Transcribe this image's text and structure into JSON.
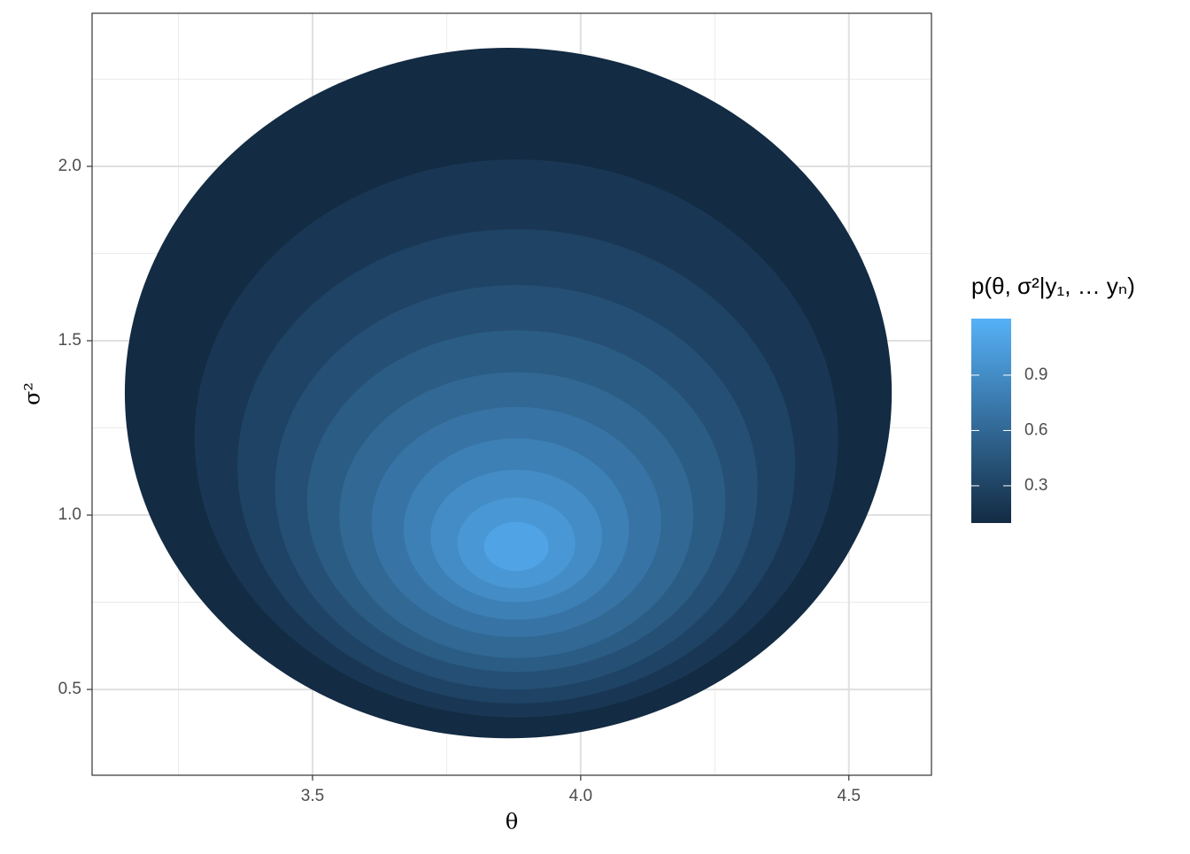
{
  "chart_data": {
    "type": "filled-contour",
    "x_label": "θ",
    "y_label": "σ²",
    "legend_title": "p(θ, σ²|y₁,  … yₙ)",
    "xlim": [
      3.089,
      4.654
    ],
    "ylim": [
      0.254,
      2.439
    ],
    "xticks": [
      3.5,
      {
        "value": 4.0,
        "label": "4.0"
      },
      4.5
    ],
    "yticks": [
      {
        "value": 0.5,
        "label": "0.5"
      },
      {
        "value": 1.0,
        "label": "1.0"
      },
      {
        "value": 1.5,
        "label": "1.5"
      },
      {
        "value": 2.0,
        "label": "2.0"
      }
    ],
    "xminor": [
      3.25,
      3.75,
      4.25
    ],
    "yminor": [
      0.75,
      1.25,
      1.75,
      2.25
    ],
    "grid": true,
    "fill_scale": {
      "low": "#132B43",
      "high": "#56B1F7",
      "lim": [
        0.098,
        1.207
      ],
      "ticks": [
        0.3,
        0.6,
        0.9
      ]
    },
    "levels": [
      {
        "level": 0.1,
        "cx": 3.865,
        "cy": 1.35,
        "rx": 0.715,
        "ry": 0.99
      },
      {
        "level": 0.2,
        "cx": 3.88,
        "cy": 1.22,
        "rx": 0.6,
        "ry": 0.8
      },
      {
        "level": 0.3,
        "cx": 3.88,
        "cy": 1.14,
        "rx": 0.52,
        "ry": 0.68
      },
      {
        "level": 0.4,
        "cx": 3.88,
        "cy": 1.08,
        "rx": 0.45,
        "ry": 0.58
      },
      {
        "level": 0.5,
        "cx": 3.88,
        "cy": 1.04,
        "rx": 0.39,
        "ry": 0.49
      },
      {
        "level": 0.6,
        "cx": 3.88,
        "cy": 1.0,
        "rx": 0.33,
        "ry": 0.41
      },
      {
        "level": 0.7,
        "cx": 3.88,
        "cy": 0.98,
        "rx": 0.27,
        "ry": 0.33
      },
      {
        "level": 0.8,
        "cx": 3.88,
        "cy": 0.96,
        "rx": 0.21,
        "ry": 0.26
      },
      {
        "level": 0.9,
        "cx": 3.88,
        "cy": 0.94,
        "rx": 0.16,
        "ry": 0.19
      },
      {
        "level": 1.0,
        "cx": 3.88,
        "cy": 0.92,
        "rx": 0.11,
        "ry": 0.13
      },
      {
        "level": 1.1,
        "cx": 3.88,
        "cy": 0.91,
        "rx": 0.06,
        "ry": 0.07
      }
    ]
  }
}
